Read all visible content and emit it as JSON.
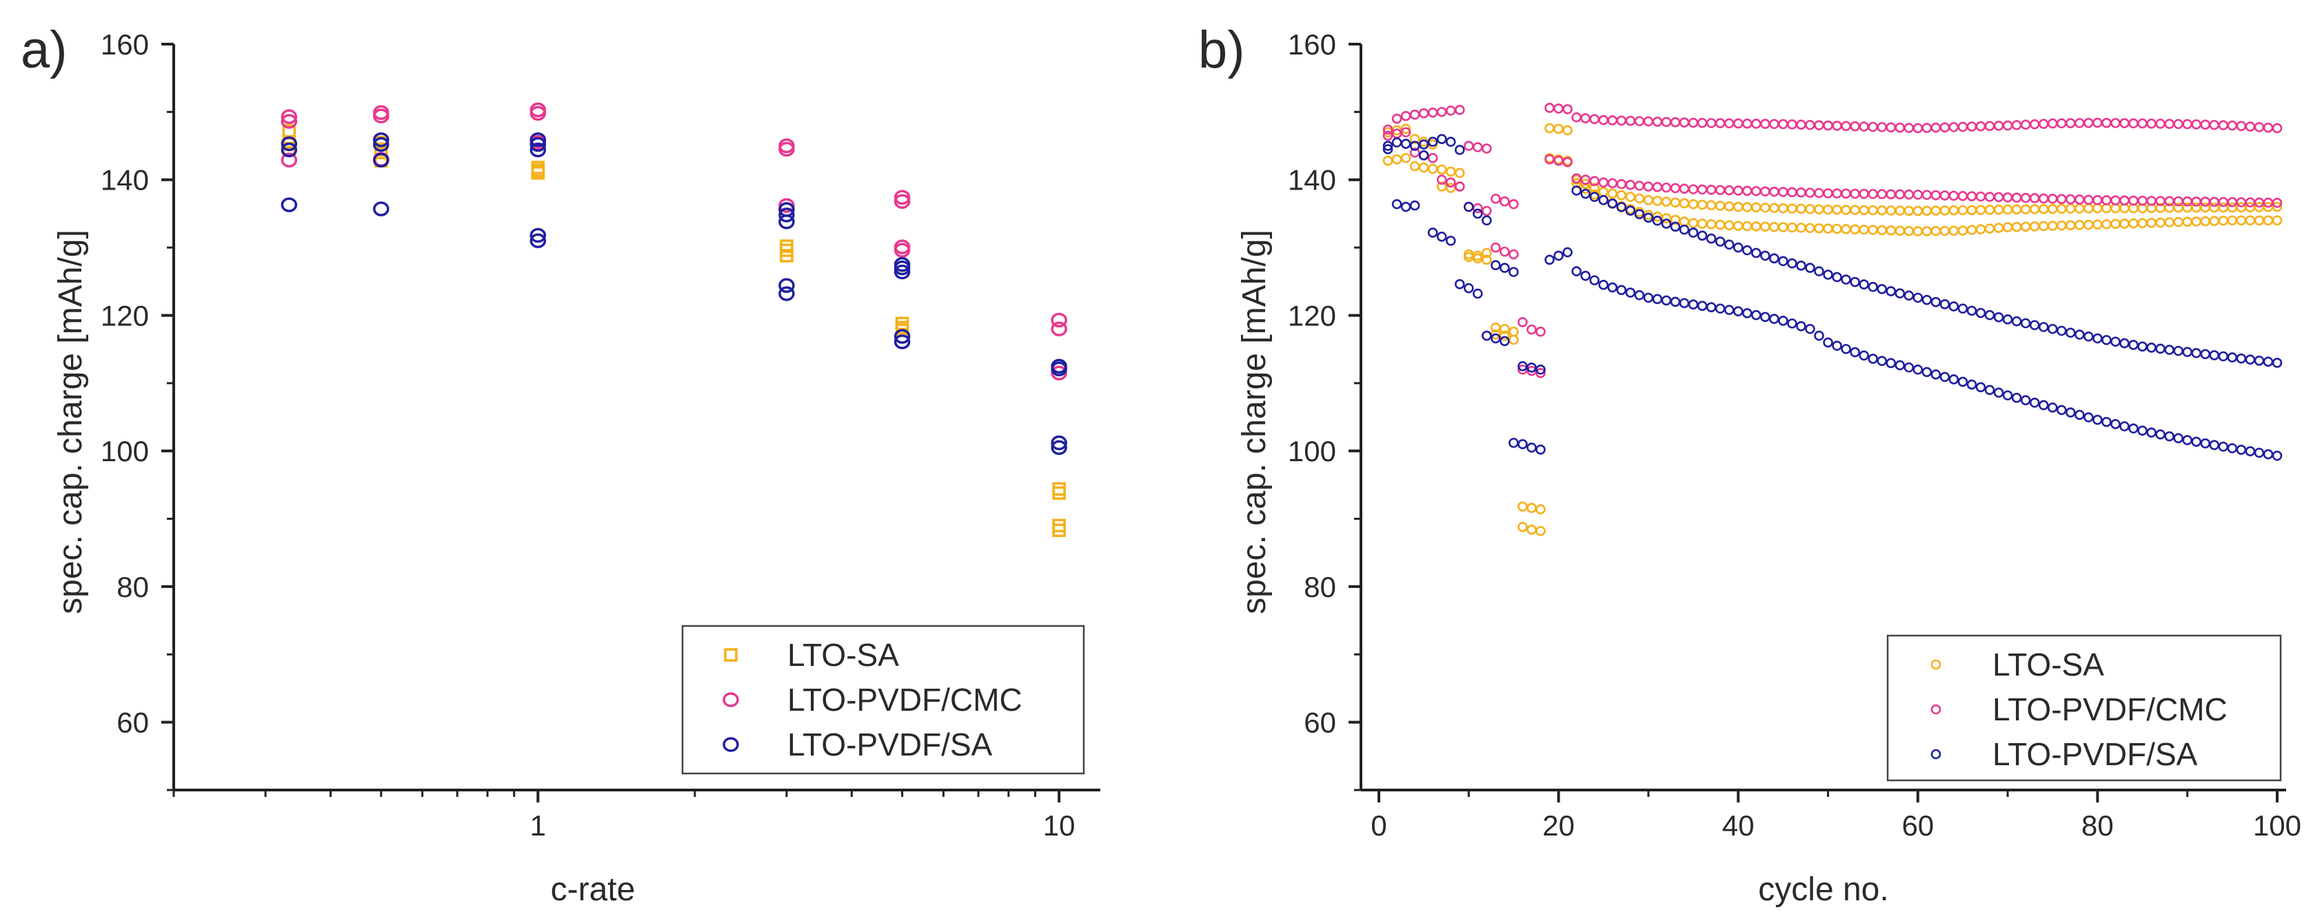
{
  "colors": {
    "lto_sa": "#f5b01a",
    "lto_pvdf_cmc": "#e8388f",
    "lto_pvdf_sa": "#1f1fa0",
    "axis": "#222222"
  },
  "chart_data": [
    {
      "type": "scatter",
      "panel_label": "a)",
      "title": "",
      "xlabel": "c-rate",
      "ylabel": "spec. cap. charge [mAh/g]",
      "x_scale": "log",
      "xlim": [
        0.2,
        12
      ],
      "ylim": [
        50,
        160
      ],
      "x_ticks": [
        1,
        10
      ],
      "x_tick_labels": [
        "1",
        "10"
      ],
      "y_ticks": [
        60,
        80,
        100,
        120,
        140,
        160
      ],
      "y_tick_labels": [
        "60",
        "80",
        "100",
        "120",
        "140",
        "160"
      ],
      "grid": false,
      "legend_position": "bottom-right",
      "series": [
        {
          "name": "LTO-SA",
          "marker": "square",
          "points": [
            [
              0.333,
              147.2
            ],
            [
              0.333,
              145.6
            ],
            [
              0.333,
              144.6
            ],
            [
              0.333,
              145.3
            ],
            [
              0.5,
              145.5
            ],
            [
              0.5,
              144.5
            ],
            [
              0.5,
              144.0
            ],
            [
              0.5,
              142.8
            ],
            [
              1,
              141.8
            ],
            [
              1,
              141.4
            ],
            [
              1,
              141.0
            ],
            [
              1,
              141.3
            ],
            [
              3,
              130.2
            ],
            [
              3,
              129.6
            ],
            [
              3,
              128.8
            ],
            [
              5,
              118.8
            ],
            [
              5,
              118.2
            ],
            [
              5,
              117.8
            ],
            [
              10,
              94.4
            ],
            [
              10,
              93.8
            ],
            [
              10,
              89.0
            ],
            [
              10,
              88.3
            ]
          ]
        },
        {
          "name": "LTO-PVDF/CMC",
          "marker": "circle",
          "points": [
            [
              0.333,
              149.3
            ],
            [
              0.333,
              148.6
            ],
            [
              0.333,
              142.9
            ],
            [
              0.5,
              149.9
            ],
            [
              0.5,
              149.4
            ],
            [
              0.5,
              143.0
            ],
            [
              1,
              150.3
            ],
            [
              1,
              149.8
            ],
            [
              1,
              145.5
            ],
            [
              3,
              145.0
            ],
            [
              3,
              144.5
            ],
            [
              3,
              136.2
            ],
            [
              5,
              137.4
            ],
            [
              5,
              136.8
            ],
            [
              5,
              130.1
            ],
            [
              5,
              129.6
            ],
            [
              10,
              119.3
            ],
            [
              10,
              118.0
            ],
            [
              10,
              111.5
            ]
          ]
        },
        {
          "name": "LTO-PVDF/SA",
          "marker": "circle",
          "points": [
            [
              0.333,
              145.3
            ],
            [
              0.333,
              144.4
            ],
            [
              0.333,
              136.3
            ],
            [
              0.5,
              145.9
            ],
            [
              0.5,
              145.2
            ],
            [
              0.5,
              142.9
            ],
            [
              0.5,
              135.7
            ],
            [
              1,
              145.9
            ],
            [
              1,
              145.2
            ],
            [
              1,
              144.4
            ],
            [
              1,
              131.8
            ],
            [
              1,
              131.0
            ],
            [
              3,
              135.6
            ],
            [
              3,
              134.8
            ],
            [
              3,
              133.8
            ],
            [
              3,
              124.4
            ],
            [
              3,
              123.2
            ],
            [
              5,
              127.5
            ],
            [
              5,
              127.0
            ],
            [
              5,
              126.4
            ],
            [
              5,
              116.9
            ],
            [
              5,
              116.1
            ],
            [
              10,
              112.5
            ],
            [
              10,
              112.1
            ],
            [
              10,
              101.2
            ],
            [
              10,
              100.5
            ]
          ]
        }
      ]
    },
    {
      "type": "scatter",
      "panel_label": "b)",
      "title": "",
      "xlabel": "cycle no.",
      "ylabel": "spec. cap. charge [mAh/g]",
      "x_scale": "linear",
      "xlim": [
        -2,
        101
      ],
      "ylim": [
        50,
        160
      ],
      "x_ticks": [
        0,
        20,
        40,
        60,
        80,
        100
      ],
      "x_tick_labels": [
        "0",
        "20",
        "40",
        "60",
        "80",
        "100"
      ],
      "y_ticks": [
        60,
        80,
        100,
        120,
        140,
        160
      ],
      "y_tick_labels": [
        "60",
        "80",
        "100",
        "120",
        "140",
        "160"
      ],
      "grid": false,
      "legend_position": "bottom-right",
      "series": [
        {
          "name": "LTO-SA",
          "marker": "circle-small",
          "segments": [
            {
              "x": [
                1,
                2,
                3,
                4,
                5,
                6,
                7,
                8,
                9,
                10,
                11,
                12,
                13,
                14,
                15,
                16,
                17,
                18,
                19,
                20,
                21
              ],
              "y": [
                147.0,
                147.3,
                147.5,
                146.0,
                145.6,
                145.2,
                141.5,
                141.2,
                141.0,
                129.0,
                128.8,
                129.2,
                118.2,
                118.0,
                117.6,
                91.8,
                91.6,
                91.4,
                147.6,
                147.5,
                147.3
              ]
            },
            {
              "x": [
                1,
                2,
                3,
                4,
                5,
                6,
                7,
                8,
                9,
                10,
                11,
                12,
                13,
                14,
                15,
                16,
                17,
                18,
                19,
                20,
                21
              ],
              "y": [
                142.8,
                143.0,
                143.2,
                142.0,
                141.8,
                141.6,
                139.0,
                138.8,
                139.0,
                128.6,
                128.4,
                128.2,
                117.2,
                117.0,
                116.4,
                88.8,
                88.4,
                88.2,
                143.2,
                143.0,
                142.8
              ]
            },
            {
              "x": [
                22,
                25,
                30,
                35,
                40,
                45,
                50,
                55,
                60,
                65,
                70,
                75,
                80,
                85,
                90,
                95,
                100
              ],
              "y": [
                140.0,
                138.2,
                137.0,
                136.4,
                136.0,
                135.8,
                135.6,
                135.5,
                135.4,
                135.5,
                135.6,
                135.7,
                135.8,
                135.8,
                135.9,
                135.9,
                136.0
              ]
            },
            {
              "x": [
                22,
                25,
                30,
                35,
                40,
                45,
                50,
                55,
                60,
                65,
                70,
                75,
                80,
                85,
                90,
                95,
                100
              ],
              "y": [
                139.5,
                137.0,
                134.8,
                133.6,
                133.2,
                133.0,
                132.8,
                132.6,
                132.4,
                132.5,
                133.0,
                133.2,
                133.4,
                133.6,
                133.8,
                134.0,
                134.0
              ]
            }
          ]
        },
        {
          "name": "LTO-PVDF/CMC",
          "marker": "circle-small",
          "segments": [
            {
              "x": [
                1,
                2,
                3,
                4,
                5,
                6,
                7,
                8,
                9,
                10,
                11,
                12,
                13,
                14,
                15,
                16,
                17,
                18,
                19,
                20,
                21
              ],
              "y": [
                147.4,
                149.0,
                149.4,
                149.6,
                149.8,
                149.9,
                150.0,
                150.2,
                150.3,
                145.0,
                144.8,
                144.6,
                137.2,
                136.8,
                136.4,
                119.0,
                117.9,
                117.6,
                150.6,
                150.5,
                150.4
              ]
            },
            {
              "x": [
                1,
                2,
                3,
                4,
                5,
                6,
                7,
                8,
                9,
                10,
                11,
                12,
                13,
                14,
                15,
                16,
                17,
                18,
                19,
                20,
                21
              ],
              "y": [
                146.5,
                146.8,
                147.0,
                144.0,
                143.6,
                143.2,
                140.0,
                139.6,
                139.0,
                136.0,
                135.8,
                135.4,
                130.0,
                129.4,
                129.0,
                112.0,
                111.8,
                111.5,
                143.0,
                142.8,
                142.6
              ]
            },
            {
              "x": [
                22,
                25,
                30,
                35,
                40,
                45,
                50,
                55,
                60,
                65,
                70,
                75,
                80,
                85,
                90,
                95,
                100
              ],
              "y": [
                149.2,
                148.8,
                148.6,
                148.4,
                148.3,
                148.2,
                148.0,
                147.8,
                147.6,
                147.8,
                148.0,
                148.3,
                148.4,
                148.3,
                148.2,
                148.0,
                147.6
              ]
            },
            {
              "x": [
                22,
                25,
                30,
                35,
                40,
                45,
                50,
                55,
                60,
                65,
                70,
                75,
                80,
                85,
                90,
                95,
                100
              ],
              "y": [
                140.2,
                139.6,
                139.0,
                138.6,
                138.4,
                138.2,
                138.0,
                137.9,
                137.8,
                137.6,
                137.4,
                137.2,
                137.0,
                136.9,
                136.8,
                136.7,
                136.6
              ]
            }
          ]
        },
        {
          "name": "LTO-PVDF/SA",
          "marker": "circle-small",
          "segments": [
            {
              "x": [
                1,
                2,
                3,
                4,
                5,
                6,
                7,
                8,
                9,
                10,
                11,
                12,
                13,
                14,
                15,
                16,
                17,
                18,
                19,
                20,
                21
              ],
              "y": [
                145.0,
                145.5,
                145.3,
                145.0,
                145.2,
                145.6,
                146.0,
                145.6,
                144.4,
                136.0,
                135.0,
                134.0,
                127.4,
                127.0,
                126.4,
                112.5,
                112.3,
                112.0,
                128.2,
                128.8,
                129.3
              ]
            },
            {
              "x": [
                1,
                2,
                3,
                4,
                5,
                6,
                7,
                8,
                9,
                10,
                11,
                12,
                13,
                14,
                15,
                16,
                17,
                18
              ],
              "y": [
                144.5,
                136.4,
                136.0,
                136.2,
                143.6,
                132.2,
                131.6,
                131.0,
                124.6,
                124.0,
                123.2,
                117.0,
                116.6,
                116.2,
                101.2,
                101.0,
                100.5,
                100.2
              ]
            },
            {
              "x": [
                22,
                25,
                30,
                35,
                40,
                45,
                48,
                50,
                55,
                60,
                65,
                70,
                75,
                80,
                85,
                90,
                95,
                100
              ],
              "y": [
                138.4,
                137.0,
                134.4,
                132.2,
                130.0,
                128.0,
                127.0,
                126.0,
                124.2,
                122.6,
                121.0,
                119.4,
                118.0,
                116.6,
                115.4,
                114.6,
                113.8,
                113.0
              ]
            },
            {
              "x": [
                22,
                25,
                30,
                35,
                40,
                45,
                48,
                50,
                55,
                60,
                65,
                70,
                75,
                80,
                85,
                90,
                95,
                100
              ],
              "y": [
                126.5,
                124.5,
                122.6,
                121.6,
                120.6,
                119.2,
                118.0,
                116.0,
                113.6,
                112.0,
                110.2,
                108.2,
                106.4,
                104.6,
                103.0,
                101.6,
                100.4,
                99.3
              ]
            }
          ]
        }
      ]
    }
  ]
}
